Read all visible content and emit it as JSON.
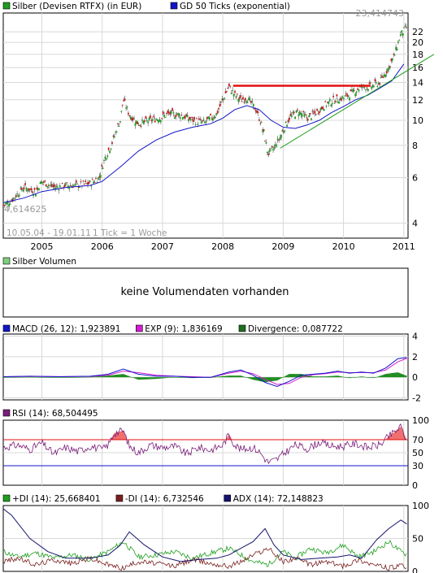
{
  "price_panel": {
    "legend": [
      {
        "label": "Silber (Devisen RTFX) (in EUR)",
        "color": "#1e9e1e"
      },
      {
        "label": "GD 50 Ticks (exponential)",
        "color": "#1414c8"
      }
    ],
    "max_label": "23,414743",
    "min_label": "4,614625",
    "range_label": "10.05.04 - 19.01.11",
    "tick_label": "1 Tick = 1 Woche"
  },
  "volume_panel": {
    "legend": [
      {
        "label": "Silber Volumen",
        "color": "#7fd07f"
      }
    ],
    "message": "keine Volumendaten vorhanden"
  },
  "macd_panel": {
    "legend": [
      {
        "label": "MACD (26, 12): 1,923891",
        "color": "#1414c8"
      },
      {
        "label": "EXP (9): 1,836169",
        "color": "#d21ed2"
      },
      {
        "label": "Divergence: 0,087722",
        "color": "#1e6e1e"
      }
    ]
  },
  "rsi_panel": {
    "legend": [
      {
        "label": "RSI (14): 68,504495",
        "color": "#7a1e7a"
      }
    ]
  },
  "dmi_panel": {
    "legend": [
      {
        "label": "+DI (14): 25,668401",
        "color": "#1e9e1e"
      },
      {
        "label": "-DI (14): 6,732546",
        "color": "#7a1e1e"
      },
      {
        "label": "ADX (14): 72,148823",
        "color": "#14146e"
      }
    ]
  },
  "chart_data": [
    {
      "type": "line",
      "name": "price",
      "x_ticks": [
        "2005",
        "2006",
        "2007",
        "2008",
        "2009",
        "2010",
        "2011"
      ],
      "yscale": "log",
      "y_ticks": [
        4,
        6,
        8,
        10,
        12,
        14,
        16,
        18,
        20,
        22
      ],
      "ylim": [
        3.5,
        26
      ],
      "series": [
        {
          "name": "Silber (Devisen RTFX) (in EUR)",
          "color": "#1e9e1e",
          "x": [
            2004.36,
            2004.5,
            2004.7,
            2004.9,
            2005.0,
            2005.2,
            2005.4,
            2005.6,
            2005.8,
            2005.95,
            2006.05,
            2006.15,
            2006.3,
            2006.35,
            2006.45,
            2006.6,
            2006.8,
            2006.95,
            2007.1,
            2007.3,
            2007.5,
            2007.7,
            2007.9,
            2008.0,
            2008.1,
            2008.2,
            2008.3,
            2008.4,
            2008.55,
            2008.65,
            2008.75,
            2008.85,
            2008.95,
            2009.1,
            2009.25,
            2009.4,
            2009.55,
            2009.7,
            2009.85,
            2010.0,
            2010.15,
            2010.3,
            2010.45,
            2010.6,
            2010.75,
            2010.85,
            2010.95,
            2011.05
          ],
          "y": [
            4.7,
            4.9,
            5.5,
            5.3,
            5.8,
            5.5,
            5.6,
            5.6,
            5.7,
            6.0,
            7.2,
            8.0,
            10.0,
            12.0,
            10.5,
            9.7,
            10.0,
            10.2,
            10.6,
            10.5,
            10.0,
            9.8,
            10.6,
            12.0,
            13.5,
            12.5,
            12.0,
            12.2,
            11.0,
            9.5,
            7.4,
            7.8,
            8.6,
            10.2,
            10.8,
            10.2,
            10.7,
            11.5,
            12.0,
            12.2,
            12.8,
            13.5,
            13.5,
            14.0,
            16.0,
            18.0,
            21.5,
            23.0
          ]
        },
        {
          "name": "GD 50 Ticks (exponential)",
          "color": "#1414c8",
          "x": [
            2004.36,
            2004.7,
            2005.0,
            2005.4,
            2005.8,
            2006.0,
            2006.3,
            2006.6,
            2006.9,
            2007.2,
            2007.5,
            2007.8,
            2008.0,
            2008.2,
            2008.4,
            2008.6,
            2008.8,
            2009.0,
            2009.2,
            2009.4,
            2009.6,
            2009.8,
            2010.0,
            2010.2,
            2010.4,
            2010.6,
            2010.8,
            2011.0
          ],
          "y": [
            4.8,
            5.0,
            5.3,
            5.5,
            5.6,
            5.8,
            6.6,
            7.6,
            8.4,
            9.0,
            9.4,
            9.7,
            10.2,
            11.0,
            11.4,
            11.0,
            10.0,
            9.4,
            9.3,
            9.6,
            10.0,
            10.7,
            11.3,
            12.0,
            12.5,
            13.3,
            14.2,
            16.5
          ]
        },
        {
          "name": "",
          "color": "#e01010",
          "x": [
            2008.17,
            2010.45
          ],
          "y": [
            13.6,
            13.6
          ]
        },
        {
          "name": "",
          "color": "#1e9e1e",
          "x": [
            2008.95,
            2011.5
          ],
          "y": [
            7.8,
            18.0
          ]
        }
      ]
    },
    {
      "type": "bar",
      "name": "volume",
      "series": []
    },
    {
      "type": "line",
      "name": "macd",
      "y_ticks": [
        4,
        2,
        0,
        -2
      ],
      "ylim": [
        -2.2,
        4.2
      ],
      "series": [
        {
          "name": "MACD (26, 12)",
          "color": "#1414c8",
          "x": [
            2004.36,
            2004.8,
            2005.3,
            2005.8,
            2006.1,
            2006.35,
            2006.6,
            2006.9,
            2007.2,
            2007.5,
            2007.8,
            2008.1,
            2008.3,
            2008.5,
            2008.7,
            2008.9,
            2009.1,
            2009.3,
            2009.5,
            2009.7,
            2009.9,
            2010.1,
            2010.3,
            2010.5,
            2010.7,
            2010.9,
            2011.05
          ],
          "y": [
            0.05,
            0.1,
            0.05,
            0.1,
            0.3,
            0.8,
            0.3,
            0.1,
            0.1,
            0.0,
            0.0,
            0.5,
            0.7,
            0.2,
            -0.5,
            -0.9,
            -0.4,
            0.2,
            0.3,
            0.4,
            0.6,
            0.4,
            0.5,
            0.4,
            0.9,
            1.8,
            1.92
          ]
        },
        {
          "name": "EXP (9)",
          "color": "#d21ed2",
          "x": [
            2004.36,
            2004.8,
            2005.3,
            2005.8,
            2006.1,
            2006.35,
            2006.6,
            2006.9,
            2007.2,
            2007.5,
            2007.8,
            2008.1,
            2008.3,
            2008.5,
            2008.7,
            2008.9,
            2009.1,
            2009.3,
            2009.5,
            2009.7,
            2009.9,
            2010.1,
            2010.3,
            2010.5,
            2010.7,
            2010.9,
            2011.05
          ],
          "y": [
            0.05,
            0.08,
            0.06,
            0.08,
            0.2,
            0.6,
            0.45,
            0.2,
            0.1,
            0.05,
            0.0,
            0.4,
            0.6,
            0.35,
            -0.2,
            -0.7,
            -0.6,
            0.0,
            0.25,
            0.35,
            0.5,
            0.45,
            0.45,
            0.45,
            0.7,
            1.5,
            1.84
          ]
        }
      ]
    },
    {
      "type": "line",
      "name": "rsi",
      "y_ticks": [
        100,
        70,
        50,
        30,
        0
      ],
      "ylim": [
        0,
        100
      ],
      "reference_lines": [
        70,
        30
      ],
      "series": [
        {
          "name": "RSI (14)",
          "color": "#7a1e7a",
          "x": [
            2004.36,
            2004.6,
            2004.8,
            2005.0,
            2005.2,
            2005.4,
            2005.6,
            2005.8,
            2006.0,
            2006.1,
            2006.2,
            2006.35,
            2006.45,
            2006.6,
            2006.8,
            2007.0,
            2007.2,
            2007.4,
            2007.6,
            2007.8,
            2008.0,
            2008.1,
            2008.2,
            2008.3,
            2008.5,
            2008.6,
            2008.75,
            2008.9,
            2009.0,
            2009.2,
            2009.4,
            2009.6,
            2009.8,
            2010.0,
            2010.2,
            2010.4,
            2010.6,
            2010.75,
            2010.85,
            2010.95,
            2011.05
          ],
          "y": [
            58,
            62,
            55,
            65,
            48,
            58,
            52,
            60,
            55,
            62,
            80,
            84,
            60,
            50,
            62,
            58,
            60,
            48,
            58,
            54,
            62,
            78,
            62,
            55,
            58,
            52,
            35,
            40,
            48,
            62,
            56,
            66,
            60,
            60,
            64,
            58,
            62,
            75,
            82,
            90,
            68.5
          ]
        }
      ]
    },
    {
      "type": "line",
      "name": "dmi",
      "y_ticks": [
        100,
        50,
        0
      ],
      "ylim": [
        0,
        100
      ],
      "series": [
        {
          "name": "+DI (14)",
          "color": "#1e9e1e",
          "x": [
            2004.36,
            2004.6,
            2004.9,
            2005.2,
            2005.5,
            2005.8,
            2006.1,
            2006.35,
            2006.6,
            2006.9,
            2007.2,
            2007.5,
            2007.8,
            2008.1,
            2008.3,
            2008.5,
            2008.75,
            2009.0,
            2009.2,
            2009.45,
            2009.7,
            2010.0,
            2010.25,
            2010.5,
            2010.75,
            2010.95,
            2011.05
          ],
          "y": [
            30,
            22,
            28,
            20,
            25,
            18,
            30,
            45,
            22,
            25,
            30,
            20,
            28,
            35,
            25,
            15,
            10,
            30,
            20,
            35,
            28,
            40,
            22,
            30,
            45,
            30,
            25.7
          ]
        },
        {
          "name": "-DI (14)",
          "color": "#7a1e1e",
          "x": [
            2004.36,
            2004.6,
            2004.9,
            2005.2,
            2005.5,
            2005.8,
            2006.1,
            2006.35,
            2006.6,
            2006.9,
            2007.2,
            2007.5,
            2007.8,
            2008.1,
            2008.3,
            2008.5,
            2008.75,
            2009.0,
            2009.2,
            2009.45,
            2009.7,
            2010.0,
            2010.25,
            2010.5,
            2010.75,
            2010.95,
            2011.05
          ],
          "y": [
            15,
            20,
            10,
            18,
            12,
            20,
            10,
            5,
            15,
            12,
            8,
            18,
            12,
            8,
            15,
            25,
            35,
            15,
            20,
            10,
            15,
            8,
            18,
            10,
            5,
            8,
            6.7
          ]
        },
        {
          "name": "ADX (14)",
          "color": "#14146e",
          "x": [
            2004.36,
            2004.5,
            2004.8,
            2005.1,
            2005.4,
            2005.8,
            2006.1,
            2006.3,
            2006.45,
            2006.7,
            2007.0,
            2007.3,
            2007.6,
            2007.9,
            2008.1,
            2008.3,
            2008.5,
            2008.7,
            2008.85,
            2009.0,
            2009.3,
            2009.6,
            2009.9,
            2010.1,
            2010.3,
            2010.55,
            2010.75,
            2010.95,
            2011.05
          ],
          "y": [
            95,
            85,
            50,
            30,
            20,
            20,
            25,
            40,
            60,
            40,
            22,
            15,
            18,
            20,
            25,
            35,
            45,
            65,
            40,
            25,
            18,
            20,
            22,
            25,
            20,
            48,
            65,
            78,
            72
          ]
        }
      ]
    }
  ]
}
